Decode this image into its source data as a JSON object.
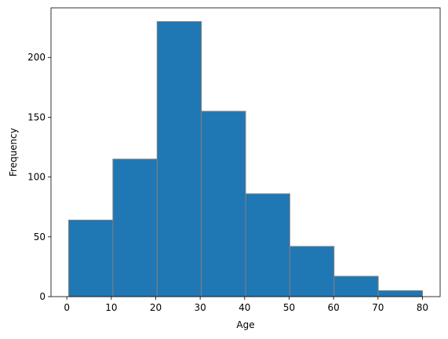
{
  "chart_data": {
    "type": "histogram",
    "xlabel": "Age",
    "ylabel": "Frequency",
    "bins": [
      0.42,
      10.3675,
      20.315,
      30.2625,
      40.21,
      50.1575,
      60.105,
      70.0525,
      80
    ],
    "values": [
      64,
      115,
      230,
      155,
      86,
      42,
      17,
      5
    ],
    "color": "#1f77b4",
    "edgecolor": "#808080",
    "xlim": [
      -3.56,
      83.98
    ],
    "xticks": [
      0,
      10,
      20,
      30,
      40,
      50,
      60,
      70,
      80
    ],
    "ylim": [
      0,
      241.5
    ],
    "yticks": [
      0,
      50,
      100,
      150,
      200
    ]
  }
}
